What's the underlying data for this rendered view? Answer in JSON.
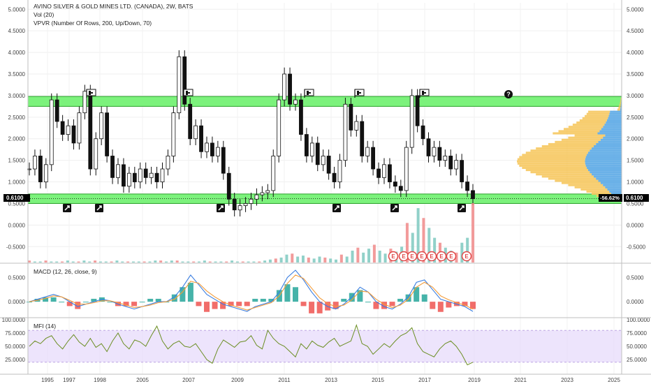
{
  "main_pane": {
    "title": "AVINO SILVER & GOLD MINES LTD. (CANADA), 2W, BATS",
    "vol_label": "Vol (20)",
    "vpvr_label": "VPVR (Number Of Rows, 200, Up/Down, 70)",
    "price_tag": "0.6100",
    "change_tag": "-56.62%",
    "price_tag_right": "0.6100"
  },
  "macd_pane": {
    "title": "MACD (12, 26, close, 9)"
  },
  "mfi_pane": {
    "title": "MFI (14)"
  },
  "colors": {
    "zone": "#7CF27C",
    "zone_border": "#2aa12a",
    "candle": "#111111",
    "vol_up": "#7ec9c0",
    "vol_down": "#f08a8a",
    "vpvr_up": "#5aa9e6",
    "vpvr_down": "#f6c85f",
    "macd_line": "#3a7de0",
    "signal_line": "#f39c3a",
    "hist_up": "#26a69a",
    "hist_down": "#ef5350",
    "mfi_line": "#6b8e23",
    "mfi_band": "#e6d9fb"
  },
  "chart_data": [
    {
      "type": "candlestick",
      "title": "AVINO SILVER & GOLD MINES LTD. (CANADA), 2W, BATS",
      "x_ticks": [
        "1995",
        "1997",
        "1998",
        "2005",
        "2007",
        "2009",
        "2011",
        "2013",
        "2015",
        "2017",
        "2019",
        "2021",
        "2023",
        "2025"
      ],
      "y_ticks_left": [
        "5.0000",
        "4.5000",
        "4.0000",
        "3.5000",
        "3.0000",
        "2.5000",
        "2.0000",
        "1.5000",
        "1.0000",
        "0.5000",
        "0.0000",
        "-0.5000"
      ],
      "y_ticks_right": [
        "5.0000",
        "4.5000",
        "4.0000",
        "3.5000",
        "3.0000",
        "2.5000",
        "2.0000",
        "1.5000",
        "1.0000",
        "0.5000",
        "0.0000",
        "-0.5000"
      ],
      "ylim": [
        -0.9,
        5.15
      ],
      "zones": [
        {
          "low": 2.75,
          "high": 2.98
        },
        {
          "low": 0.5,
          "high": 0.72
        }
      ],
      "last_price": 0.61,
      "series": [
        {
          "values": [
            1.3,
            1.6,
            1.0,
            1.4,
            2.9,
            2.4,
            2.1,
            2.3,
            1.9,
            2.6,
            3.1,
            1.3,
            2.0,
            2.6,
            1.6,
            1.1,
            1.4,
            0.9,
            1.2,
            1.0,
            1.3,
            1.1,
            1.2,
            1.0,
            1.3,
            1.6,
            2.6,
            3.9,
            2.8,
            2.0,
            2.3,
            1.7,
            1.9,
            1.6,
            1.8,
            1.2,
            0.6,
            0.35,
            0.45,
            0.5,
            0.6,
            0.7,
            0.75,
            0.8,
            1.6,
            2.9,
            3.5,
            2.8,
            2.9,
            2.1,
            1.6,
            1.9,
            1.4,
            1.6,
            1.2,
            1.0,
            1.5,
            2.8,
            2.2,
            2.4,
            1.6,
            1.8,
            1.3,
            1.1,
            1.4,
            1.0,
            0.9,
            0.8,
            1.8,
            3.0,
            2.3,
            2.0,
            1.6,
            1.8,
            1.5,
            1.6,
            1.3,
            1.5,
            1.0,
            0.8,
            0.61
          ]
        }
      ]
    },
    {
      "type": "bar",
      "title": "Vol (20)",
      "series": [
        {
          "values": [
            2,
            1,
            1,
            2,
            1,
            1,
            1,
            2,
            1,
            1,
            2,
            1,
            2,
            1,
            1,
            1,
            2,
            1,
            1,
            1,
            1,
            1,
            1,
            2,
            2,
            1,
            2,
            2,
            1,
            1,
            1,
            1,
            2,
            1,
            1,
            1,
            1,
            2,
            1,
            1,
            1,
            1,
            1,
            2,
            3,
            4,
            5,
            8,
            9,
            6,
            7,
            5,
            4,
            6,
            5,
            4,
            3,
            8,
            6,
            12,
            15,
            10,
            14,
            18,
            12,
            9,
            14,
            11,
            16,
            40,
            30,
            55,
            45,
            35,
            25,
            20,
            15,
            12,
            10,
            20,
            25,
            60
          ]
        }
      ]
    },
    {
      "type": "line",
      "title": "MACD (12, 26, close, 9)",
      "y_ticks": [
        "0.5000",
        "0.0000"
      ],
      "series": [
        {
          "values": [
            0.0,
            0.05,
            0.1,
            0.15,
            0.1,
            0.0,
            -0.1,
            -0.05,
            0.0,
            0.05,
            0.02,
            -0.05,
            -0.1,
            -0.15,
            -0.1,
            -0.05,
            0.0,
            0.0,
            0.1,
            0.3,
            0.55,
            0.35,
            0.15,
            0.05,
            -0.05,
            -0.1,
            -0.15,
            -0.2,
            -0.1,
            -0.05,
            0.0,
            0.2,
            0.5,
            0.65,
            0.45,
            0.2,
            0.0,
            -0.1,
            -0.15,
            -0.05,
            0.1,
            0.3,
            0.2,
            0.0,
            -0.1,
            -0.15,
            -0.05,
            0.1,
            0.4,
            0.45,
            0.25,
            0.05,
            0.0,
            -0.05,
            -0.1,
            -0.2
          ]
        },
        {
          "values": [
            0.0,
            0.03,
            0.07,
            0.12,
            0.1,
            0.03,
            -0.05,
            -0.05,
            -0.02,
            0.02,
            0.02,
            -0.02,
            -0.07,
            -0.12,
            -0.1,
            -0.07,
            -0.02,
            0.0,
            0.05,
            0.2,
            0.42,
            0.38,
            0.22,
            0.1,
            0.0,
            -0.07,
            -0.12,
            -0.17,
            -0.12,
            -0.07,
            -0.02,
            0.12,
            0.38,
            0.55,
            0.48,
            0.28,
            0.08,
            -0.04,
            -0.1,
            -0.07,
            0.04,
            0.22,
            0.2,
            0.05,
            -0.05,
            -0.12,
            -0.07,
            0.05,
            0.3,
            0.4,
            0.3,
            0.12,
            0.04,
            -0.02,
            -0.07,
            -0.15
          ]
        }
      ]
    },
    {
      "type": "line",
      "title": "MFI (14)",
      "y_ticks": [
        "100.0000",
        "75.0000",
        "50.0000",
        "25.0000"
      ],
      "ylim": [
        0,
        100
      ],
      "bands": [
        20,
        80
      ],
      "series": [
        {
          "values": [
            50,
            60,
            55,
            65,
            70,
            55,
            45,
            60,
            72,
            58,
            50,
            65,
            48,
            55,
            40,
            60,
            75,
            55,
            45,
            62,
            58,
            50,
            70,
            88,
            60,
            45,
            55,
            60,
            50,
            48,
            55,
            40,
            25,
            18,
            45,
            62,
            55,
            48,
            58,
            60,
            70,
            52,
            45,
            80,
            65,
            55,
            50,
            40,
            30,
            55,
            45,
            60,
            52,
            48,
            58,
            65,
            50,
            55,
            60,
            90,
            55,
            50,
            35,
            45,
            55,
            48,
            60,
            70,
            75,
            85,
            55,
            40,
            35,
            30,
            45,
            55,
            60,
            50,
            35,
            15,
            20
          ]
        }
      ]
    }
  ]
}
